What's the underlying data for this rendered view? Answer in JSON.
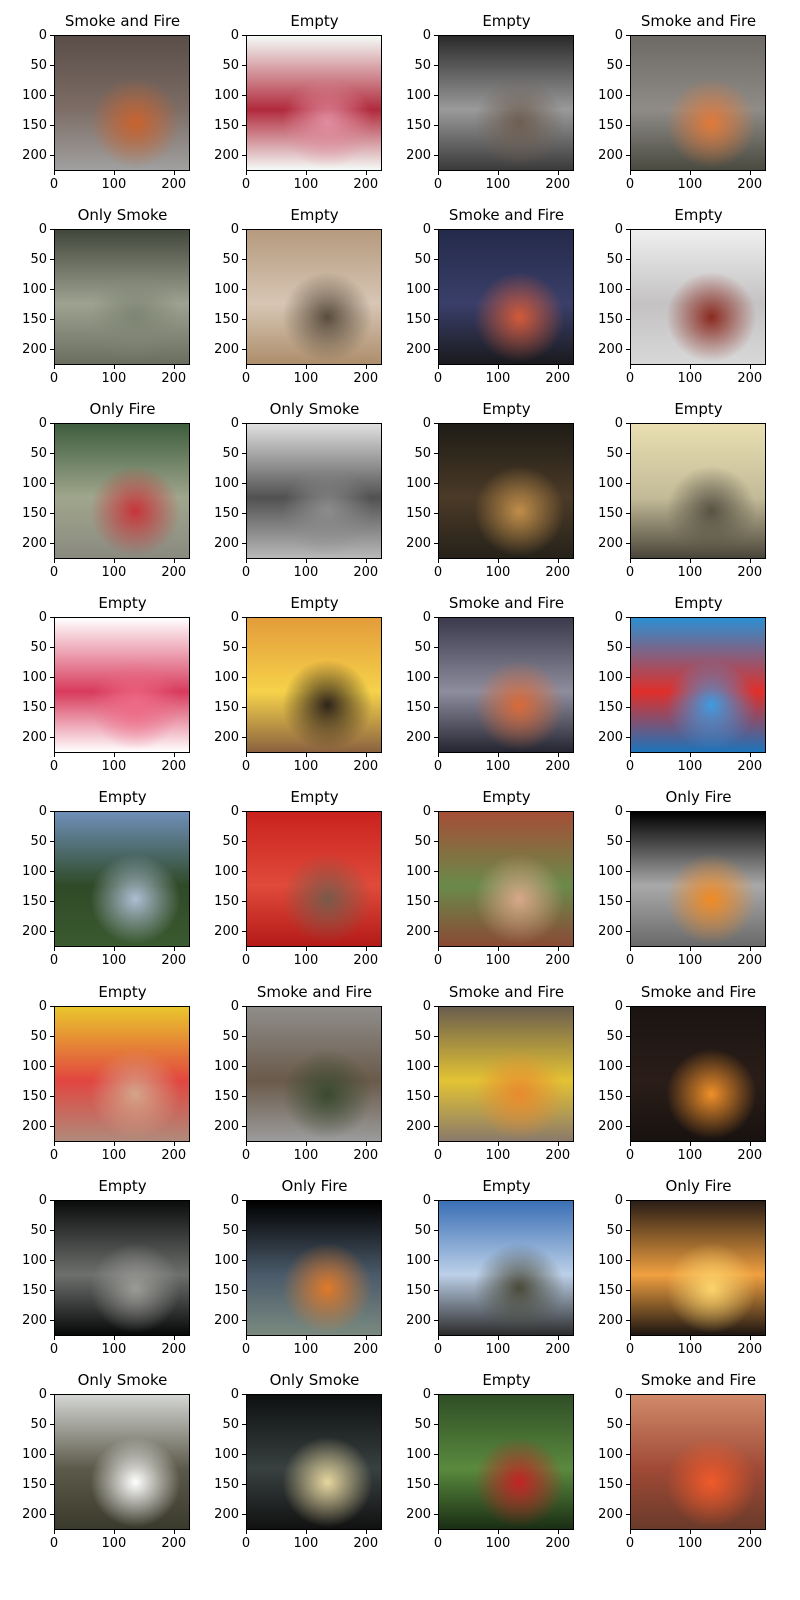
{
  "axis": {
    "yticks": [
      "0",
      "50",
      "100",
      "150",
      "200"
    ],
    "xticks": [
      "0",
      "100",
      "200"
    ]
  },
  "panels": [
    {
      "label": "Smoke and Fire",
      "colors": [
        "#5a4e48",
        "#7d6d66",
        "#c8622e",
        "#a0a0a0"
      ]
    },
    {
      "label": "Empty",
      "colors": [
        "#f4fbf7",
        "#b12a3c",
        "#e08ea0",
        "#f4fbf7"
      ]
    },
    {
      "label": "Empty",
      "colors": [
        "#2a2a2a",
        "#9a9a9a",
        "#6e5e52",
        "#3a3a3a"
      ]
    },
    {
      "label": "Smoke and Fire",
      "colors": [
        "#6d6a66",
        "#8f8c88",
        "#e07a3a",
        "#4a4a40"
      ]
    },
    {
      "label": "Only Smoke",
      "colors": [
        "#42473c",
        "#9ea291",
        "#7f8574",
        "#6a6e5f"
      ]
    },
    {
      "label": "Empty",
      "colors": [
        "#b59a7e",
        "#d7c6b4",
        "#5a4d3e",
        "#ad8e6c"
      ]
    },
    {
      "label": "Smoke and Fire",
      "colors": [
        "#242a4a",
        "#3a3f6a",
        "#d25a3a",
        "#1a1a1e"
      ]
    },
    {
      "label": "Empty",
      "colors": [
        "#efeff0",
        "#c4c2c2",
        "#8a2a20",
        "#d8d8d8"
      ]
    },
    {
      "label": "Only Fire",
      "colors": [
        "#3e5e3e",
        "#a0a68c",
        "#c8343a",
        "#8a8a80"
      ]
    },
    {
      "label": "Only Smoke",
      "colors": [
        "#e0e0e0",
        "#515151",
        "#8c8c8c",
        "#b8b8b8"
      ]
    },
    {
      "label": "Empty",
      "colors": [
        "#1e1c16",
        "#4b3a27",
        "#c08e4a",
        "#26221a"
      ]
    },
    {
      "label": "Empty",
      "colors": [
        "#e9dfb2",
        "#c3bb98",
        "#585244",
        "#4a453a"
      ]
    },
    {
      "label": "Empty",
      "colors": [
        "#ffffff",
        "#d83a5c",
        "#ee6a86",
        "#ffffff"
      ]
    },
    {
      "label": "Empty",
      "colors": [
        "#e39c3a",
        "#f6d24a",
        "#2e241a",
        "#8a6240"
      ]
    },
    {
      "label": "Smoke and Fire",
      "colors": [
        "#3a3a4c",
        "#8d8d9e",
        "#d86a3a",
        "#262632"
      ]
    },
    {
      "label": "Empty",
      "colors": [
        "#2c8fd2",
        "#e02f2a",
        "#3f9be0",
        "#1d74bc"
      ]
    },
    {
      "label": "Empty",
      "colors": [
        "#6f8fb9",
        "#2f4a27",
        "#aebdd3",
        "#3a5a30"
      ]
    },
    {
      "label": "Empty",
      "colors": [
        "#c9221e",
        "#e04a3a",
        "#7a5a4a",
        "#b41a18"
      ]
    },
    {
      "label": "Empty",
      "colors": [
        "#a44e36",
        "#6a8a4a",
        "#d8a88a",
        "#8a4a36"
      ]
    },
    {
      "label": "Only Fire",
      "colors": [
        "#000000",
        "#a9a9a9",
        "#f08a24",
        "#6a6a6a"
      ]
    },
    {
      "label": "Empty",
      "colors": [
        "#e9c62c",
        "#e24640",
        "#d4a48a",
        "#b08a7a"
      ]
    },
    {
      "label": "Smoke and Fire",
      "colors": [
        "#8f8d8a",
        "#6a5a4a",
        "#3a4a30",
        "#9c9c9c"
      ]
    },
    {
      "label": "Smoke and Fire",
      "colors": [
        "#6a5e4e",
        "#e3c334",
        "#e88a2e",
        "#8a7a6a"
      ]
    },
    {
      "label": "Smoke and Fire",
      "colors": [
        "#1a1412",
        "#2a1d18",
        "#f0902a",
        "#181210"
      ]
    },
    {
      "label": "Empty",
      "colors": [
        "#0a0d0c",
        "#6e706e",
        "#9a9a96",
        "#070909"
      ]
    },
    {
      "label": "Only Fire",
      "colors": [
        "#000000",
        "#4a5a6a",
        "#e07a2a",
        "#7a8a80"
      ]
    },
    {
      "label": "Empty",
      "colors": [
        "#3a6fb5",
        "#bcd0e8",
        "#4a4a3a",
        "#2c2c2c"
      ]
    },
    {
      "label": "Only Fire",
      "colors": [
        "#2a1d16",
        "#f0a040",
        "#fcd46c",
        "#1e1612"
      ]
    },
    {
      "label": "Only Smoke",
      "colors": [
        "#d4d6d4",
        "#5c5a4a",
        "#ffffff",
        "#3a3a2c"
      ]
    },
    {
      "label": "Only Smoke",
      "colors": [
        "#0e1010",
        "#384040",
        "#e7d7a0",
        "#111111"
      ]
    },
    {
      "label": "Empty",
      "colors": [
        "#2f4e26",
        "#5a8a3e",
        "#c22424",
        "#1a2e14"
      ]
    },
    {
      "label": "Smoke and Fire",
      "colors": [
        "#d08a6a",
        "#a04a36",
        "#f05a2a",
        "#6a3a2a"
      ]
    }
  ]
}
